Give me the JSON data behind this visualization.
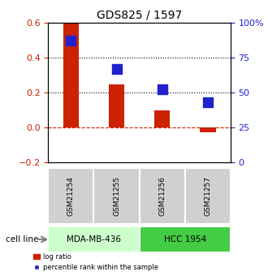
{
  "title": "GDS825 / 1597",
  "samples": [
    "GSM21254",
    "GSM21255",
    "GSM21256",
    "GSM21257"
  ],
  "log_ratio": [
    0.595,
    0.245,
    0.095,
    -0.03
  ],
  "percentile_rank": [
    87.0,
    67.0,
    52.0,
    43.0
  ],
  "cell_lines": [
    {
      "name": "MDA-MB-436",
      "samples": [
        0,
        1
      ],
      "color": "#ccffcc"
    },
    {
      "name": "HCC 1954",
      "samples": [
        2,
        3
      ],
      "color": "#44cc44"
    }
  ],
  "bar_color": "#cc2200",
  "dot_color": "#2222cc",
  "left_ylim": [
    -0.2,
    0.6
  ],
  "right_ylim": [
    0,
    100
  ],
  "left_yticks": [
    -0.2,
    0.0,
    0.2,
    0.4,
    0.6
  ],
  "right_yticks": [
    0,
    25,
    50,
    75,
    100
  ],
  "right_yticklabels": [
    "0",
    "25",
    "50",
    "75",
    "100%"
  ],
  "hlines_dotted": [
    0.2,
    0.4
  ],
  "hline_dashed": 0.0,
  "bar_width": 0.35,
  "dot_size": 80
}
